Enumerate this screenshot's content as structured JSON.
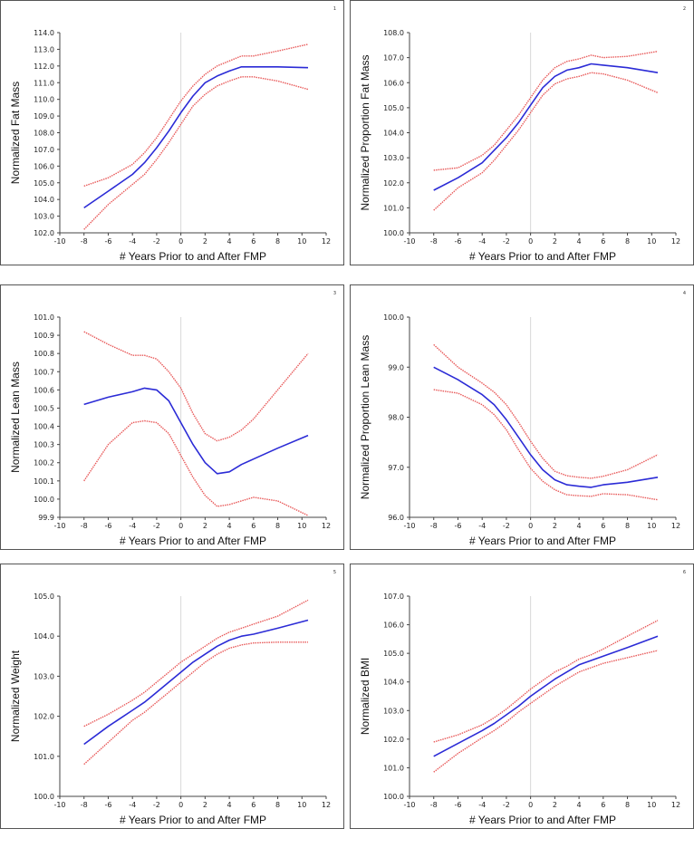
{
  "colors": {
    "estimate": "#2b2bd6",
    "ci": "#e85a5a",
    "zero_line": "#d8d8d8",
    "axis": "#444444"
  },
  "chart_data": [
    {
      "panel_number": "1",
      "type": "line",
      "xlabel": "# Years Prior to and After FMP",
      "ylabel": "Normalized Fat Mass",
      "xlim": [
        -10,
        12
      ],
      "xticks": [
        -10,
        -8,
        -6,
        -4,
        -2,
        0,
        2,
        4,
        6,
        8,
        10,
        12
      ],
      "ylim": [
        102.0,
        114.0
      ],
      "ytick_step": 1.0,
      "ytick_decimals": 1,
      "series": [
        {
          "role": "estimate",
          "x": [
            -8,
            -6,
            -4,
            -3,
            -2,
            -1,
            0,
            1,
            2,
            3,
            4,
            5,
            6,
            8,
            10.5
          ],
          "y": [
            103.5,
            104.5,
            105.5,
            106.2,
            107.1,
            108.1,
            109.2,
            110.2,
            111.0,
            111.4,
            111.7,
            111.95,
            111.95,
            111.95,
            111.9
          ]
        },
        {
          "role": "upper",
          "x": [
            -8,
            -6,
            -4,
            -3,
            -2,
            -1,
            0,
            1,
            2,
            3,
            4,
            5,
            6,
            8,
            10.5
          ],
          "y": [
            104.8,
            105.3,
            106.1,
            106.8,
            107.7,
            108.8,
            109.9,
            110.8,
            111.5,
            112.0,
            112.3,
            112.6,
            112.6,
            112.9,
            113.3
          ]
        },
        {
          "role": "lower",
          "x": [
            -8,
            -6,
            -4,
            -3,
            -2,
            -1,
            0,
            1,
            2,
            3,
            4,
            5,
            6,
            8,
            10.5
          ],
          "y": [
            102.2,
            103.7,
            104.9,
            105.5,
            106.4,
            107.4,
            108.5,
            109.6,
            110.3,
            110.8,
            111.1,
            111.35,
            111.35,
            111.1,
            110.6
          ]
        }
      ]
    },
    {
      "panel_number": "2",
      "type": "line",
      "xlabel": "# Years Prior to and After FMP",
      "ylabel": "Normalized Proportion Fat Mass",
      "xlim": [
        -10,
        12
      ],
      "xticks": [
        -10,
        -8,
        -6,
        -4,
        -2,
        0,
        2,
        4,
        6,
        8,
        10,
        12
      ],
      "ylim": [
        100.0,
        108.0
      ],
      "ytick_step": 1.0,
      "ytick_decimals": 1,
      "series": [
        {
          "role": "estimate",
          "x": [
            -8,
            -6,
            -4,
            -3,
            -2,
            -1,
            0,
            1,
            2,
            3,
            4,
            5,
            6,
            8,
            10.5
          ],
          "y": [
            101.7,
            102.2,
            102.8,
            103.3,
            103.8,
            104.4,
            105.1,
            105.8,
            106.25,
            106.5,
            106.6,
            106.75,
            106.7,
            106.6,
            106.4
          ]
        },
        {
          "role": "upper",
          "x": [
            -8,
            -6,
            -4,
            -3,
            -2,
            -1,
            0,
            1,
            2,
            3,
            4,
            5,
            6,
            8,
            10.5
          ],
          "y": [
            102.5,
            102.6,
            103.1,
            103.5,
            104.1,
            104.7,
            105.4,
            106.1,
            106.6,
            106.85,
            106.95,
            107.1,
            107.0,
            107.05,
            107.25
          ]
        },
        {
          "role": "lower",
          "x": [
            -8,
            -6,
            -4,
            -3,
            -2,
            -1,
            0,
            1,
            2,
            3,
            4,
            5,
            6,
            8,
            10.5
          ],
          "y": [
            100.9,
            101.8,
            102.4,
            102.9,
            103.5,
            104.1,
            104.8,
            105.5,
            105.95,
            106.15,
            106.25,
            106.4,
            106.35,
            106.1,
            105.6
          ]
        }
      ]
    },
    {
      "panel_number": "3",
      "type": "line",
      "xlabel": "# Years Prior to and After FMP",
      "ylabel": "Normalized Lean Mass",
      "xlim": [
        -10,
        12
      ],
      "xticks": [
        -10,
        -8,
        -6,
        -4,
        -2,
        0,
        2,
        4,
        6,
        8,
        10,
        12
      ],
      "ylim": [
        99.9,
        101.0
      ],
      "ytick_step": 0.1,
      "ytick_decimals": 1,
      "series": [
        {
          "role": "estimate",
          "x": [
            -8,
            -6,
            -4,
            -3,
            -2,
            -1,
            0,
            1,
            2,
            3,
            4,
            5,
            6,
            8,
            10.5
          ],
          "y": [
            100.52,
            100.56,
            100.59,
            100.61,
            100.6,
            100.54,
            100.42,
            100.3,
            100.2,
            100.14,
            100.15,
            100.19,
            100.22,
            100.28,
            100.35
          ]
        },
        {
          "role": "upper",
          "x": [
            -8,
            -6,
            -4,
            -3,
            -2,
            -1,
            0,
            1,
            2,
            3,
            4,
            5,
            6,
            8,
            10.5
          ],
          "y": [
            100.92,
            100.85,
            100.79,
            100.79,
            100.77,
            100.7,
            100.61,
            100.47,
            100.36,
            100.32,
            100.34,
            100.38,
            100.44,
            100.6,
            100.8
          ]
        },
        {
          "role": "lower",
          "x": [
            -8,
            -6,
            -4,
            -3,
            -2,
            -1,
            0,
            1,
            2,
            3,
            4,
            5,
            6,
            8,
            10.5
          ],
          "y": [
            100.1,
            100.3,
            100.42,
            100.43,
            100.42,
            100.36,
            100.24,
            100.12,
            100.02,
            99.96,
            99.97,
            99.99,
            100.01,
            99.99,
            99.91
          ]
        }
      ]
    },
    {
      "panel_number": "4",
      "type": "line",
      "xlabel": "# Years Prior to and After FMP",
      "ylabel": "Normalized Proportion Lean Mass",
      "xlim": [
        -10,
        12
      ],
      "xticks": [
        -10,
        -8,
        -6,
        -4,
        -2,
        0,
        2,
        4,
        6,
        8,
        10,
        12
      ],
      "ylim": [
        96.0,
        100.0
      ],
      "ytick_step": 1.0,
      "ytick_decimals": 1,
      "series": [
        {
          "role": "estimate",
          "x": [
            -8,
            -6,
            -4,
            -3,
            -2,
            -1,
            0,
            1,
            2,
            3,
            4,
            5,
            6,
            8,
            10.5
          ],
          "y": [
            99.0,
            98.75,
            98.45,
            98.25,
            97.95,
            97.6,
            97.25,
            96.95,
            96.75,
            96.65,
            96.62,
            96.6,
            96.65,
            96.7,
            96.8
          ]
        },
        {
          "role": "upper",
          "x": [
            -8,
            -6,
            -4,
            -3,
            -2,
            -1,
            0,
            1,
            2,
            3,
            4,
            5,
            6,
            8,
            10.5
          ],
          "y": [
            99.45,
            99.0,
            98.68,
            98.5,
            98.25,
            97.9,
            97.52,
            97.18,
            96.92,
            96.83,
            96.8,
            96.78,
            96.82,
            96.95,
            97.25
          ]
        },
        {
          "role": "lower",
          "x": [
            -8,
            -6,
            -4,
            -3,
            -2,
            -1,
            0,
            1,
            2,
            3,
            4,
            5,
            6,
            8,
            10.5
          ],
          "y": [
            98.55,
            98.48,
            98.25,
            98.05,
            97.75,
            97.35,
            96.98,
            96.72,
            96.55,
            96.45,
            96.43,
            96.42,
            96.47,
            96.45,
            96.35
          ]
        }
      ]
    },
    {
      "panel_number": "5",
      "type": "line",
      "xlabel": "# Years Prior to and After FMP",
      "ylabel": "Normalized Weight",
      "xlim": [
        -10,
        12
      ],
      "xticks": [
        -10,
        -8,
        -6,
        -4,
        -2,
        0,
        2,
        4,
        6,
        8,
        10,
        12
      ],
      "ylim": [
        100.0,
        105.0
      ],
      "ytick_step": 1.0,
      "ytick_decimals": 1,
      "series": [
        {
          "role": "estimate",
          "x": [
            -8,
            -6,
            -4,
            -3,
            -2,
            -1,
            0,
            1,
            2,
            3,
            4,
            5,
            6,
            8,
            10.5
          ],
          "y": [
            101.3,
            101.75,
            102.15,
            102.35,
            102.6,
            102.85,
            103.1,
            103.35,
            103.55,
            103.75,
            103.9,
            104.0,
            104.05,
            104.2,
            104.4
          ]
        },
        {
          "role": "upper",
          "x": [
            -8,
            -6,
            -4,
            -3,
            -2,
            -1,
            0,
            1,
            2,
            3,
            4,
            5,
            6,
            8,
            10.5
          ],
          "y": [
            101.75,
            102.05,
            102.4,
            102.6,
            102.85,
            103.1,
            103.35,
            103.55,
            103.75,
            103.95,
            104.1,
            104.2,
            104.3,
            104.5,
            104.9
          ]
        },
        {
          "role": "lower",
          "x": [
            -8,
            -6,
            -4,
            -3,
            -2,
            -1,
            0,
            1,
            2,
            3,
            4,
            5,
            6,
            8,
            10.5
          ],
          "y": [
            100.8,
            101.35,
            101.9,
            102.1,
            102.35,
            102.6,
            102.85,
            103.1,
            103.35,
            103.55,
            103.7,
            103.78,
            103.83,
            103.85,
            103.85
          ]
        }
      ]
    },
    {
      "panel_number": "6",
      "type": "line",
      "xlabel": "# Years Prior to and After FMP",
      "ylabel": "Normalized BMI",
      "xlim": [
        -10,
        12
      ],
      "xticks": [
        -10,
        -8,
        -6,
        -4,
        -2,
        0,
        2,
        4,
        6,
        8,
        10,
        12
      ],
      "ylim": [
        100.0,
        107.0
      ],
      "ytick_step": 1.0,
      "ytick_decimals": 1,
      "series": [
        {
          "role": "estimate",
          "x": [
            -8,
            -6,
            -4,
            -3,
            -2,
            -1,
            0,
            1,
            2,
            3,
            4,
            5,
            6,
            8,
            10.5
          ],
          "y": [
            101.4,
            101.85,
            102.3,
            102.55,
            102.85,
            103.15,
            103.5,
            103.8,
            104.1,
            104.35,
            104.6,
            104.75,
            104.9,
            105.2,
            105.6
          ]
        },
        {
          "role": "upper",
          "x": [
            -8,
            -6,
            -4,
            -3,
            -2,
            -1,
            0,
            1,
            2,
            3,
            4,
            5,
            6,
            8,
            10.5
          ],
          "y": [
            101.9,
            102.15,
            102.5,
            102.75,
            103.05,
            103.4,
            103.75,
            104.05,
            104.35,
            104.55,
            104.8,
            104.95,
            105.15,
            105.6,
            106.15
          ]
        },
        {
          "role": "lower",
          "x": [
            -8,
            -6,
            -4,
            -3,
            -2,
            -1,
            0,
            1,
            2,
            3,
            4,
            5,
            6,
            8,
            10.5
          ],
          "y": [
            100.85,
            101.5,
            102.05,
            102.3,
            102.6,
            102.95,
            103.25,
            103.55,
            103.85,
            104.1,
            104.35,
            104.5,
            104.65,
            104.85,
            105.1
          ]
        }
      ]
    }
  ]
}
